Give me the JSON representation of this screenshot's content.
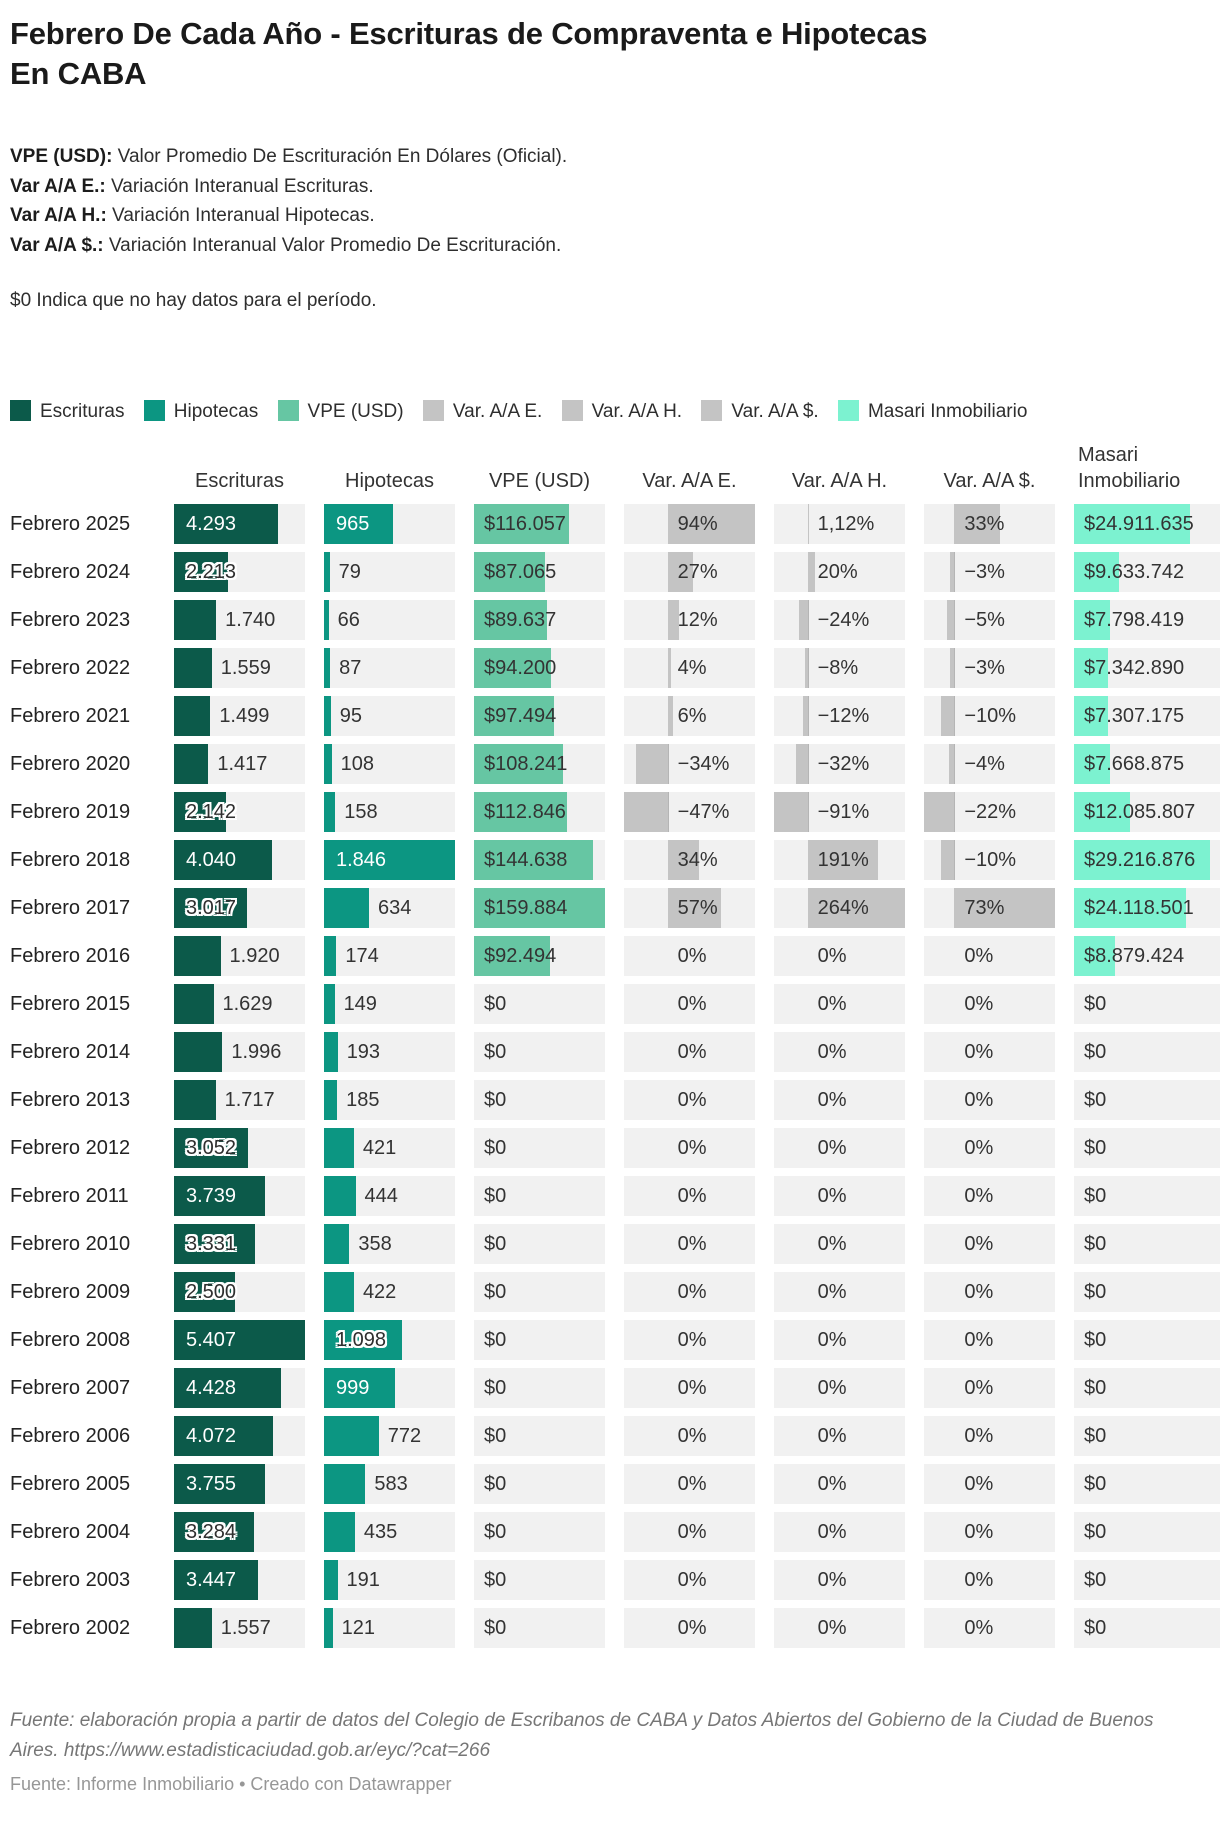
{
  "title": "Febrero De Cada Año - Escrituras de Compraventa e Hipotecas En CABA",
  "definitions": [
    {
      "term": "VPE (USD):",
      "text": " Valor Promedio De Escrituración En Dólares (Oficial)."
    },
    {
      "term": "Var A/A E.:",
      "text": " Variación Interanual Escrituras."
    },
    {
      "term": "Var A/A H.:",
      "text": " Variación Interanual Hipotecas."
    },
    {
      "term": "Var A/A $.:",
      "text": " Variación Interanual Valor Promedio De Escrituración."
    }
  ],
  "note": "$0 Indica que no hay datos para el período.",
  "colors": {
    "escrituras": "#0c5a4a",
    "hipotecas": "#0c9682",
    "vpe": "#66c6a3",
    "var_gray": "#c4c4c4",
    "masari": "#7cf2d0",
    "cell_bg": "#f1f1f1"
  },
  "legend": [
    {
      "label": "Escrituras",
      "color": "#0c5a4a"
    },
    {
      "label": "Hipotecas",
      "color": "#0c9682"
    },
    {
      "label": "VPE (USD)",
      "color": "#66c6a3"
    },
    {
      "label": "Var. A/A E.",
      "color": "#c4c4c4"
    },
    {
      "label": "Var. A/A H.",
      "color": "#c4c4c4"
    },
    {
      "label": "Var. A/A $.",
      "color": "#c4c4c4"
    },
    {
      "label": "Masari Inmobiliario",
      "color": "#7cf2d0"
    }
  ],
  "columns": [
    {
      "label": "Escrituras"
    },
    {
      "label": "Hipotecas"
    },
    {
      "label": "VPE (USD)"
    },
    {
      "label": "Var. A/A E."
    },
    {
      "label": "Var. A/A H."
    },
    {
      "label": "Var. A/A $."
    },
    {
      "label": "Masari Inmobiliario"
    }
  ],
  "chart_data": {
    "type": "table",
    "title": "Febrero De Cada Año - Escrituras de Compraventa e Hipotecas En CABA",
    "categories": [
      "Febrero 2025",
      "Febrero 2024",
      "Febrero 2023",
      "Febrero 2022",
      "Febrero 2021",
      "Febrero 2020",
      "Febrero 2019",
      "Febrero 2018",
      "Febrero 2017",
      "Febrero 2016",
      "Febrero 2015",
      "Febrero 2014",
      "Febrero 2013",
      "Febrero 2012",
      "Febrero 2011",
      "Febrero 2010",
      "Febrero 2009",
      "Febrero 2008",
      "Febrero 2007",
      "Febrero 2006",
      "Febrero 2005",
      "Febrero 2004",
      "Febrero 2003",
      "Febrero 2002"
    ],
    "series": [
      {
        "name": "Escrituras",
        "values": [
          4293,
          2213,
          1740,
          1559,
          1499,
          1417,
          2142,
          4040,
          3017,
          1920,
          1629,
          1996,
          1717,
          3052,
          3739,
          3331,
          2500,
          5407,
          4428,
          4072,
          3755,
          3284,
          3447,
          1557
        ]
      },
      {
        "name": "Hipotecas",
        "values": [
          965,
          79,
          66,
          87,
          95,
          108,
          158,
          1846,
          634,
          174,
          149,
          193,
          185,
          421,
          444,
          358,
          422,
          1098,
          999,
          772,
          583,
          435,
          191,
          121
        ]
      },
      {
        "name": "VPE (USD)",
        "values": [
          116057,
          87065,
          89637,
          94200,
          97494,
          108241,
          112846,
          144638,
          159884,
          92494,
          0,
          0,
          0,
          0,
          0,
          0,
          0,
          0,
          0,
          0,
          0,
          0,
          0,
          0
        ]
      },
      {
        "name": "Var. A/A E. (%)",
        "values": [
          94,
          27,
          12,
          4,
          6,
          -34,
          -47,
          34,
          57,
          0,
          0,
          0,
          0,
          0,
          0,
          0,
          0,
          0,
          0,
          0,
          0,
          0,
          0,
          0
        ]
      },
      {
        "name": "Var. A/A H. (%)",
        "values": [
          1.12,
          20,
          -24,
          -8,
          -12,
          -32,
          -91,
          191,
          264,
          0,
          0,
          0,
          0,
          0,
          0,
          0,
          0,
          0,
          0,
          0,
          0,
          0,
          0,
          0
        ]
      },
      {
        "name": "Var. A/A $. (%)",
        "values": [
          33,
          -3,
          -5,
          -3,
          -10,
          -4,
          -22,
          -10,
          73,
          0,
          0,
          0,
          0,
          0,
          0,
          0,
          0,
          0,
          0,
          0,
          0,
          0,
          0,
          0
        ]
      },
      {
        "name": "Masari Inmobiliario",
        "values": [
          24911635,
          9633742,
          7798419,
          7342890,
          7307175,
          7668875,
          12085807,
          29216876,
          24118501,
          8879424,
          0,
          0,
          0,
          0,
          0,
          0,
          0,
          0,
          0,
          0,
          0,
          0,
          0,
          0
        ]
      }
    ],
    "labels": {
      "esc": [
        "4.293",
        "2.213",
        "1.740",
        "1.559",
        "1.499",
        "1.417",
        "2.142",
        "4.040",
        "3.017",
        "1.920",
        "1.629",
        "1.996",
        "1.717",
        "3.052",
        "3.739",
        "3.331",
        "2.500",
        "5.407",
        "4.428",
        "4.072",
        "3.755",
        "3.284",
        "3.447",
        "1.557"
      ],
      "hip": [
        "965",
        "79",
        "66",
        "87",
        "95",
        "108",
        "158",
        "1.846",
        "634",
        "174",
        "149",
        "193",
        "185",
        "421",
        "444",
        "358",
        "422",
        "1.098",
        "999",
        "772",
        "583",
        "435",
        "191",
        "121"
      ],
      "vpe": [
        "$116.057",
        "$87.065",
        "$89.637",
        "$94.200",
        "$97.494",
        "$108.241",
        "$112.846",
        "$144.638",
        "$159.884",
        "$92.494",
        "$0",
        "$0",
        "$0",
        "$0",
        "$0",
        "$0",
        "$0",
        "$0",
        "$0",
        "$0",
        "$0",
        "$0",
        "$0",
        "$0"
      ],
      "ve": [
        "94%",
        "27%",
        "12%",
        "4%",
        "6%",
        "−34%",
        "−47%",
        "34%",
        "57%",
        "0%",
        "0%",
        "0%",
        "0%",
        "0%",
        "0%",
        "0%",
        "0%",
        "0%",
        "0%",
        "0%",
        "0%",
        "0%",
        "0%",
        "0%"
      ],
      "vh": [
        "1,12%",
        "20%",
        "−24%",
        "−8%",
        "−12%",
        "−32%",
        "−91%",
        "191%",
        "264%",
        "0%",
        "0%",
        "0%",
        "0%",
        "0%",
        "0%",
        "0%",
        "0%",
        "0%",
        "0%",
        "0%",
        "0%",
        "0%",
        "0%",
        "0%"
      ],
      "vs": [
        "33%",
        "−3%",
        "−5%",
        "−3%",
        "−10%",
        "−4%",
        "−22%",
        "−10%",
        "73%",
        "0%",
        "0%",
        "0%",
        "0%",
        "0%",
        "0%",
        "0%",
        "0%",
        "0%",
        "0%",
        "0%",
        "0%",
        "0%",
        "0%",
        "0%"
      ],
      "mas": [
        "$24.911.635",
        "$9.633.742",
        "$7.798.419",
        "$7.342.890",
        "$7.307.175",
        "$7.668.875",
        "$12.085.807",
        "$29.216.876",
        "$24.118.501",
        "$8.879.424",
        "$0",
        "$0",
        "$0",
        "$0",
        "$0",
        "$0",
        "$0",
        "$0",
        "$0",
        "$0",
        "$0",
        "$0",
        "$0",
        "$0"
      ]
    },
    "label_styles": {
      "esc": [
        "in",
        "halo",
        "out",
        "out",
        "out",
        "out",
        "halo",
        "in",
        "halo",
        "out",
        "out",
        "out",
        "out",
        "halo",
        "in",
        "halo",
        "halo",
        "in",
        "in",
        "in",
        "in",
        "halo",
        "in",
        "out"
      ],
      "hip": [
        "in",
        "out",
        "out",
        "out",
        "out",
        "out",
        "out",
        "in",
        "out",
        "out",
        "out",
        "out",
        "out",
        "out",
        "out",
        "out",
        "out",
        "halo",
        "in",
        "out",
        "out",
        "out",
        "out",
        "out"
      ]
    },
    "scales": {
      "esc_max": 5407,
      "hip_max": 1846,
      "vpe_max": 159884,
      "mas_max": 29216876,
      "ve_min": -47,
      "ve_max": 94,
      "vh_min": -91,
      "vh_max": 264,
      "vs_min": -22,
      "vs_max": 73
    },
    "legend_position": "top",
    "grid": false
  },
  "footer": {
    "source": "Fuente: elaboración propia a partir de datos del Colegio de Escribanos de CABA y Datos Abiertos del Gobierno de la Ciudad de Buenos Aires. https://www.estadisticaciudad.gob.ar/eyc/?cat=266",
    "credit": "Fuente: Informe Inmobiliario • Creado con Datawrapper"
  }
}
